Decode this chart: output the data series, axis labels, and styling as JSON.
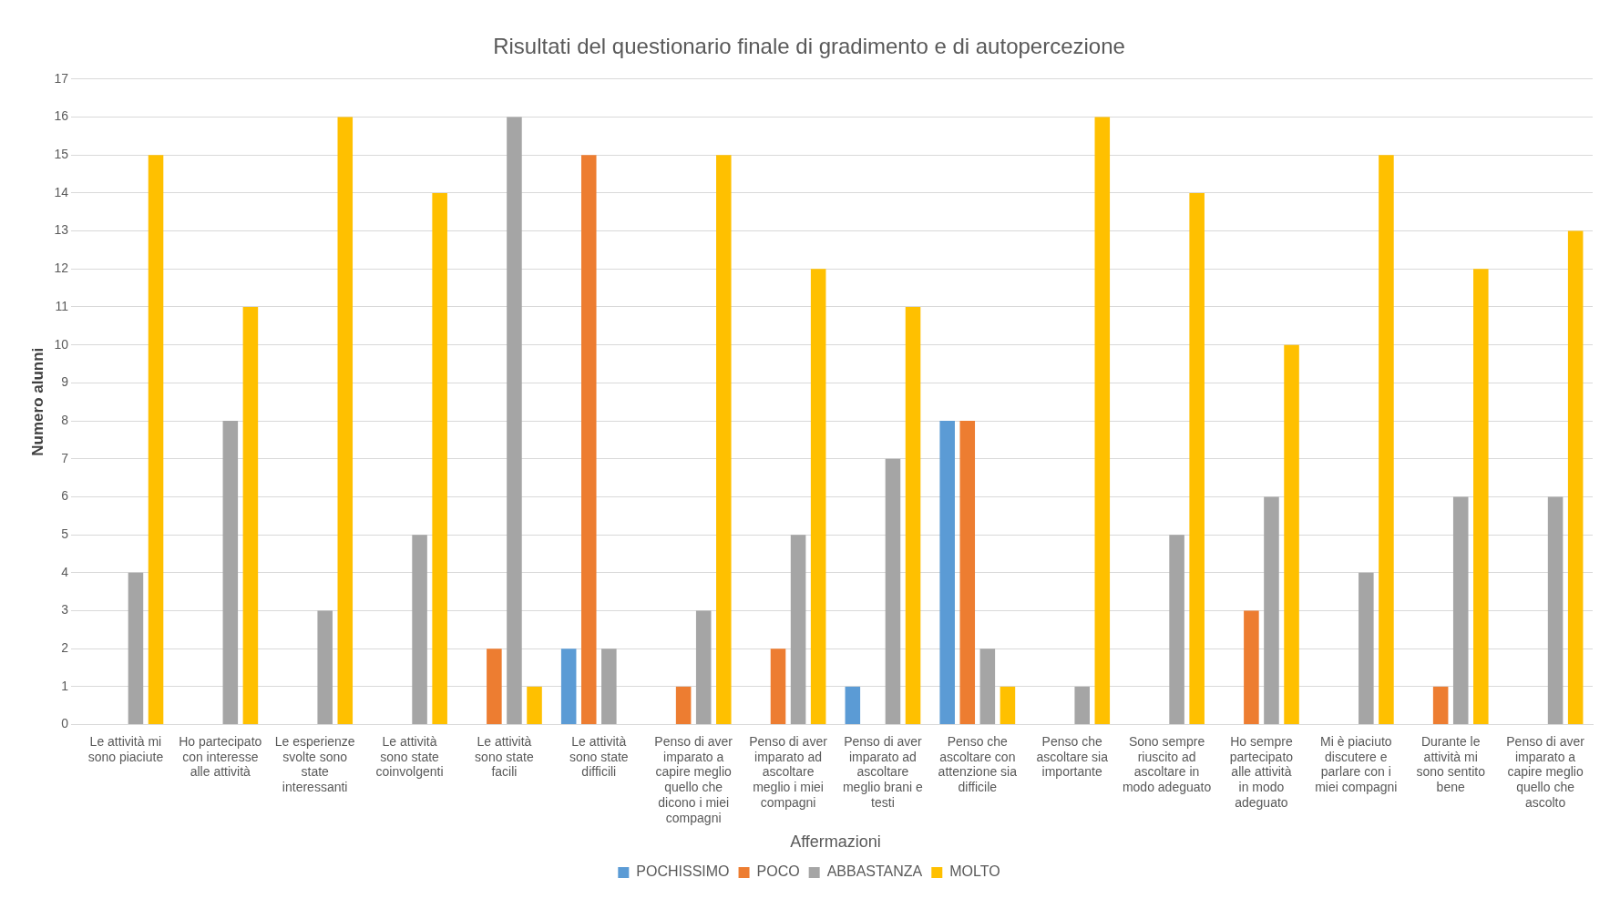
{
  "chart_data": {
    "type": "bar",
    "title": "Risultati del questionario finale di gradimento e di autopercezione",
    "xlabel": "Affermazioni",
    "ylabel": "Numero alunni",
    "categories": [
      "Le attività mi sono piaciute",
      "Ho partecipato con interesse alle attività",
      "Le esperienze svolte sono state interessanti",
      "Le attività sono state coinvolgenti",
      "Le attività sono state facili",
      "Le attività sono state difficili",
      "Penso di aver imparato a capire meglio quello che dicono i miei compagni",
      "Penso di aver imparato ad ascoltare meglio i miei compagni",
      "Penso di aver imparato ad ascoltare meglio brani e testi",
      "Penso che ascoltare con attenzione sia difficile",
      "Penso che ascoltare sia importante",
      "Sono sempre riuscito ad ascoltare in modo adeguato",
      "Ho sempre partecipato alle attività in modo adeguato",
      "Mi è piaciuto discutere e parlare con i miei compagni",
      "Durante le attività mi sono sentito bene",
      "Penso di aver imparato a capire meglio quello che ascolto"
    ],
    "series": [
      {
        "name": "POCHISSIMO",
        "color": "#5b9bd5",
        "values": [
          0,
          0,
          0,
          0,
          0,
          2,
          0,
          0,
          1,
          8,
          0,
          0,
          0,
          0,
          0,
          0
        ]
      },
      {
        "name": "POCO",
        "color": "#ed7d31",
        "values": [
          0,
          0,
          0,
          0,
          2,
          15,
          1,
          2,
          0,
          8,
          0,
          0,
          3,
          0,
          1,
          0
        ]
      },
      {
        "name": "ABBASTANZA",
        "color": "#a5a5a5",
        "values": [
          4,
          8,
          3,
          5,
          16,
          2,
          3,
          5,
          7,
          2,
          1,
          5,
          6,
          4,
          6,
          6
        ]
      },
      {
        "name": "MOLTO",
        "color": "#ffc000",
        "values": [
          15,
          11,
          16,
          14,
          1,
          0,
          15,
          12,
          11,
          1,
          16,
          14,
          10,
          15,
          12,
          13
        ]
      }
    ],
    "ylim": [
      0,
      17
    ],
    "yticks": [
      0,
      1,
      2,
      3,
      4,
      5,
      6,
      7,
      8,
      9,
      10,
      11,
      12,
      13,
      14,
      15,
      16,
      17
    ],
    "grid": "y",
    "legend": "bottom"
  }
}
